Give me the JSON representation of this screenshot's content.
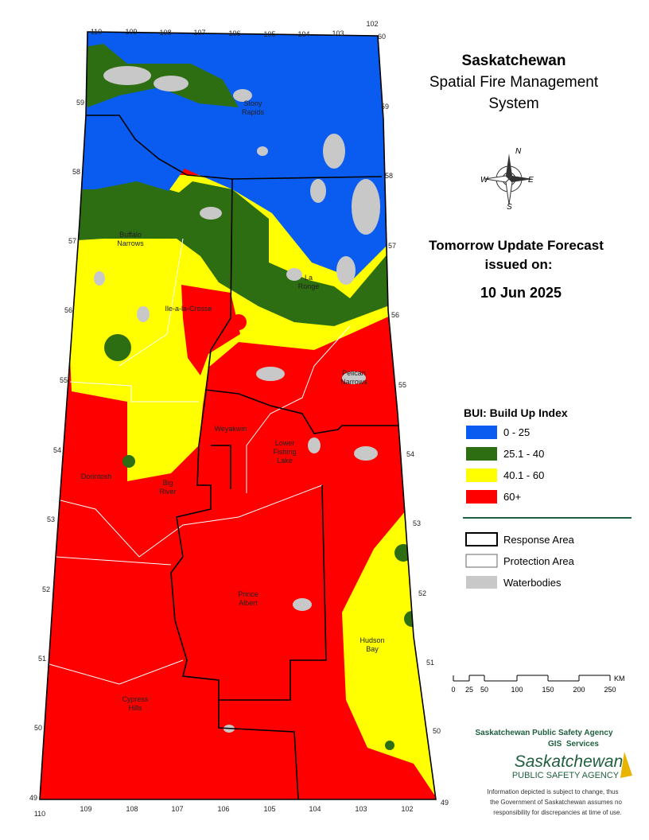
{
  "title": {
    "line1": "Saskatchewan",
    "line2": "Spatial Fire Management",
    "line3": "System"
  },
  "forecast": {
    "line1": "Tomorrow Update Forecast",
    "line2": "issued on:",
    "date": "10 Jun 2025"
  },
  "legend": {
    "title": "BUI: Build Up Index",
    "items": [
      {
        "label": "0 - 25",
        "color": "#0a5cf0"
      },
      {
        "label": "25.1 - 40",
        "color": "#2e6e12"
      },
      {
        "label": "40.1 - 60",
        "color": "#ffff00"
      },
      {
        "label": "60+",
        "color": "#fe0000"
      }
    ],
    "features": [
      "Response Area",
      "Protection Area",
      "Waterbodies"
    ]
  },
  "compass": {
    "n": "N",
    "e": "E",
    "s": "S",
    "w": "W"
  },
  "places": [
    "Stony Rapids",
    "Buffalo Narrows",
    "La Ronge",
    "Ile-a-la-Crosse",
    "Pelican Narrows",
    "Weyakwin",
    "Lower Fishing Lake",
    "Dorintosh",
    "Big River",
    "Prince Albert",
    "Hudson Bay",
    "Cypress Hills"
  ],
  "grid_labels": {
    "top": [
      110,
      109,
      108,
      107,
      106,
      105,
      104,
      103,
      102
    ],
    "right": [
      60,
      59,
      58,
      57,
      56,
      55,
      54,
      53,
      52,
      51,
      50,
      49
    ],
    "left": [
      59,
      58,
      57,
      56,
      55,
      54,
      53,
      52,
      51,
      50,
      49
    ],
    "bottom": [
      110,
      109,
      108,
      107,
      106,
      105,
      104,
      103,
      102
    ]
  },
  "scale_bar": {
    "ticks": [
      0,
      25,
      50,
      100,
      150,
      200,
      250
    ],
    "unit": "KM"
  },
  "agency": {
    "name": "Saskatchewan Public Safety Agency",
    "dept": "GIS  Services",
    "logo_top": "Saskatchewan",
    "logo_bottom": "PUBLIC SAFETY AGENCY"
  },
  "disclaimer": [
    "Information depicted is subject to change, thus",
    "the Government of Saskatchewan assumes no",
    "responsibility for discrepancies at time of use."
  ]
}
